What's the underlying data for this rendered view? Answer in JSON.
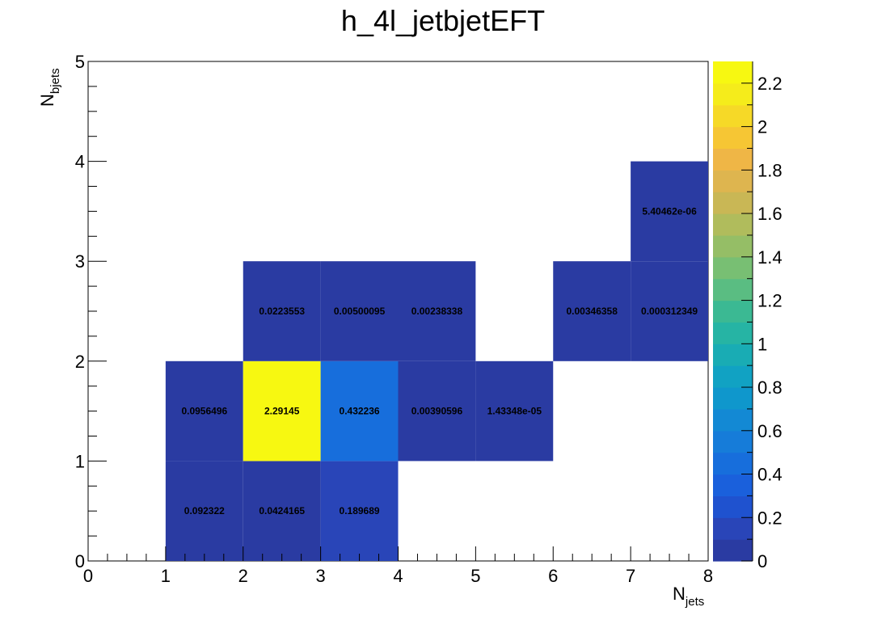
{
  "chart_data": {
    "type": "heatmap",
    "title": "h_4l_jetbjetEFT",
    "xlabel": {
      "main": "N",
      "sub": "jets"
    },
    "ylabel": {
      "main": "N",
      "sub": "bjets"
    },
    "xlim": [
      0,
      8
    ],
    "ylim": [
      0,
      5
    ],
    "zlim": [
      0,
      2.3
    ],
    "x_ticks": [
      "0",
      "1",
      "2",
      "3",
      "4",
      "5",
      "6",
      "7",
      "8"
    ],
    "y_ticks": [
      "0",
      "1",
      "2",
      "3",
      "4",
      "5"
    ],
    "z_ticks": [
      {
        "value": 0,
        "label": "0"
      },
      {
        "value": 0.2,
        "label": "0.2"
      },
      {
        "value": 0.4,
        "label": "0.4"
      },
      {
        "value": 0.6,
        "label": "0.6"
      },
      {
        "value": 0.8,
        "label": "0.8"
      },
      {
        "value": 1.0,
        "label": "1"
      },
      {
        "value": 1.2,
        "label": "1.2"
      },
      {
        "value": 1.4,
        "label": "1.4"
      },
      {
        "value": 1.6,
        "label": "1.6"
      },
      {
        "value": 1.8,
        "label": "1.8"
      },
      {
        "value": 2.0,
        "label": "2"
      },
      {
        "value": 2.2,
        "label": "2.2"
      }
    ],
    "palette": [
      "#2a3ba2",
      "#2945b8",
      "#1f52cf",
      "#1a60dc",
      "#176edc",
      "#167cd9",
      "#1389d4",
      "#0f97cc",
      "#11a2c3",
      "#19acb4",
      "#26b4a4",
      "#3bb993",
      "#5abd82",
      "#78bf73",
      "#95be66",
      "#b0bc5c",
      "#c9b755",
      "#deb54f",
      "#efb646",
      "#f6c634",
      "#f6d927",
      "#f5ec1b",
      "#f7f811"
    ],
    "cells": [
      {
        "x": [
          1,
          2
        ],
        "y": [
          0,
          1
        ],
        "value": 0.092322,
        "label": "0.092322"
      },
      {
        "x": [
          2,
          3
        ],
        "y": [
          0,
          1
        ],
        "value": 0.0424165,
        "label": "0.0424165"
      },
      {
        "x": [
          3,
          4
        ],
        "y": [
          0,
          1
        ],
        "value": 0.189689,
        "label": "0.189689"
      },
      {
        "x": [
          1,
          2
        ],
        "y": [
          1,
          2
        ],
        "value": 0.0956496,
        "label": "0.0956496"
      },
      {
        "x": [
          2,
          3
        ],
        "y": [
          1,
          2
        ],
        "value": 2.29145,
        "label": "2.29145"
      },
      {
        "x": [
          3,
          4
        ],
        "y": [
          1,
          2
        ],
        "value": 0.432236,
        "label": "0.432236"
      },
      {
        "x": [
          4,
          5
        ],
        "y": [
          1,
          2
        ],
        "value": 0.00390596,
        "label": "0.00390596"
      },
      {
        "x": [
          5,
          6
        ],
        "y": [
          1,
          2
        ],
        "value": 1.43348e-05,
        "label": "1.43348e-05"
      },
      {
        "x": [
          2,
          3
        ],
        "y": [
          2,
          3
        ],
        "value": 0.0223553,
        "label": "0.0223553"
      },
      {
        "x": [
          3,
          4
        ],
        "y": [
          2,
          3
        ],
        "value": 0.00500095,
        "label": "0.00500095"
      },
      {
        "x": [
          4,
          5
        ],
        "y": [
          2,
          3
        ],
        "value": 0.00238338,
        "label": "0.00238338"
      },
      {
        "x": [
          6,
          7
        ],
        "y": [
          2,
          3
        ],
        "value": 0.00346358,
        "label": "0.00346358"
      },
      {
        "x": [
          7,
          8
        ],
        "y": [
          2,
          3
        ],
        "value": 0.000312349,
        "label": "0.000312349"
      },
      {
        "x": [
          7,
          8
        ],
        "y": [
          3,
          4
        ],
        "value": 5.40462e-06,
        "label": "5.40462e-06"
      }
    ]
  }
}
